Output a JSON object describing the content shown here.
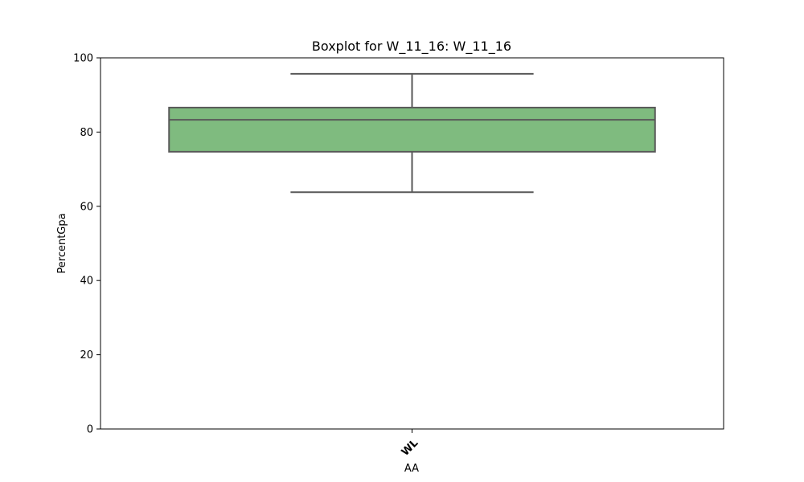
{
  "chart_data": {
    "type": "box",
    "title": "Boxplot for W_11_16: W_11_16",
    "xlabel": "AA",
    "ylabel": "PercentGpa",
    "ylim": [
      0,
      100
    ],
    "yticks": [
      0,
      20,
      40,
      60,
      80,
      100
    ],
    "categories": [
      "WL"
    ],
    "boxes": [
      {
        "category": "WL",
        "whisker_low": 63.8,
        "q1": 74.7,
        "median": 83.3,
        "q3": 86.6,
        "whisker_high": 95.7
      }
    ],
    "box_color": "#7fbb7f",
    "line_color": "#595959",
    "grid": false,
    "legend": "none"
  }
}
